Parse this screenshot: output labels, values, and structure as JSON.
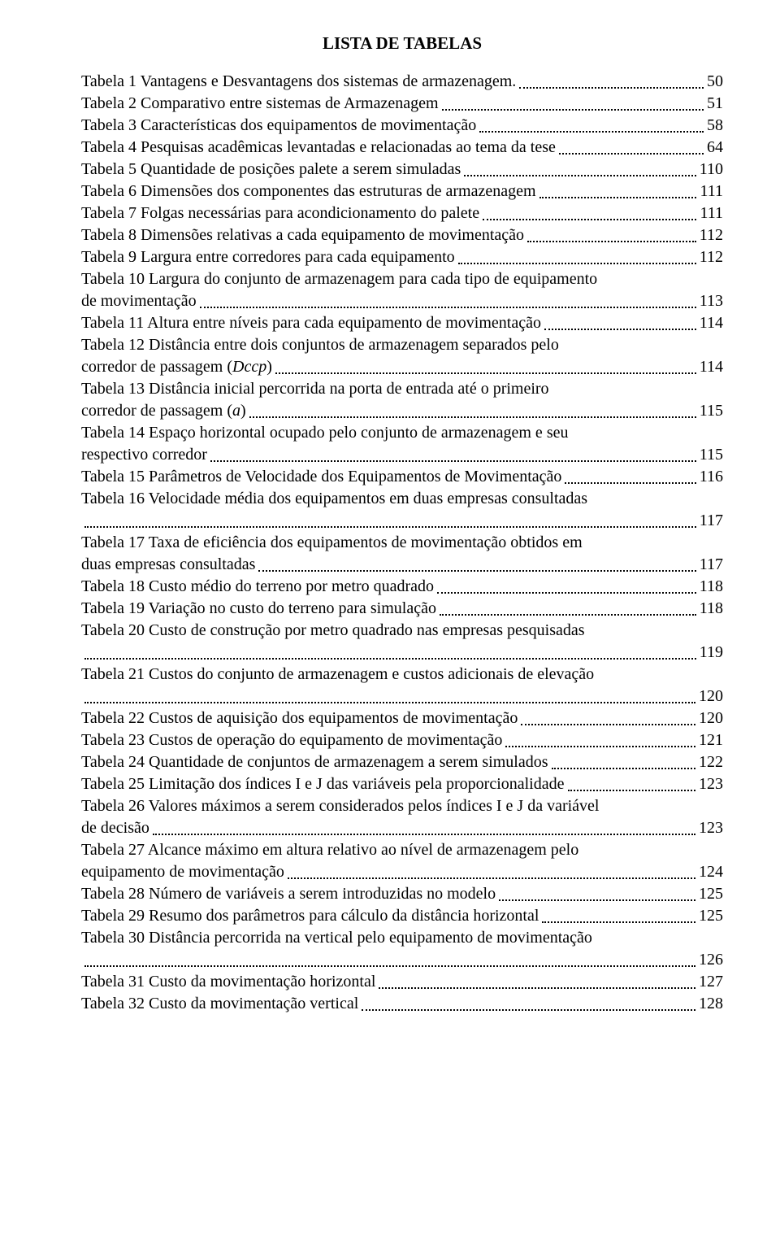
{
  "title": "LISTA DE TABELAS",
  "entries": [
    {
      "lines": [
        "Tabela 1 Vantagens e Desvantagens dos sistemas de armazenagem."
      ],
      "page": "50"
    },
    {
      "lines": [
        "Tabela 2 Comparativo entre sistemas de Armazenagem"
      ],
      "page": "51"
    },
    {
      "lines": [
        "Tabela 3 Características dos equipamentos de movimentação"
      ],
      "page": "58"
    },
    {
      "lines": [
        "Tabela 4 Pesquisas acadêmicas levantadas e relacionadas ao tema da tese"
      ],
      "page": "64"
    },
    {
      "lines": [
        "Tabela 5 Quantidade de posições palete a serem simuladas"
      ],
      "page": "110"
    },
    {
      "lines": [
        "Tabela 6 Dimensões dos componentes das estruturas de armazenagem"
      ],
      "page": "111"
    },
    {
      "lines": [
        "Tabela 7 Folgas necessárias para acondicionamento do palete"
      ],
      "page": "111"
    },
    {
      "lines": [
        "Tabela 8 Dimensões relativas a cada equipamento de movimentação"
      ],
      "page": "112"
    },
    {
      "lines": [
        "Tabela 9 Largura entre corredores para cada equipamento"
      ],
      "page": "112"
    },
    {
      "lines": [
        "Tabela 10 Largura do conjunto de armazenagem para cada tipo de equipamento",
        "de movimentação"
      ],
      "page": "113"
    },
    {
      "lines": [
        "Tabela 11 Altura entre níveis para cada equipamento de movimentação"
      ],
      "page": "114"
    },
    {
      "lines": [
        "Tabela 12 Distância entre dois conjuntos de armazenagem separados pelo",
        "corredor de passagem (<i>Dccp</i>)"
      ],
      "page": "114"
    },
    {
      "lines": [
        "Tabela 13 Distância inicial percorrida na porta de entrada até o primeiro",
        "corredor de passagem (<i>a</i>)"
      ],
      "page": "115"
    },
    {
      "lines": [
        "Tabela 14 Espaço horizontal ocupado pelo conjunto de armazenagem e seu",
        "respectivo corredor"
      ],
      "page": "115"
    },
    {
      "lines": [
        "Tabela 15 Parâmetros de Velocidade dos Equipamentos de Movimentação"
      ],
      "page": "116"
    },
    {
      "lines": [
        "Tabela 16 Velocidade média dos equipamentos em duas empresas consultadas",
        ""
      ],
      "page": "117"
    },
    {
      "lines": [
        "Tabela 17 Taxa de eficiência dos equipamentos de movimentação obtidos em",
        "duas empresas consultadas"
      ],
      "page": "117"
    },
    {
      "lines": [
        "Tabela 18 Custo médio do terreno por metro quadrado"
      ],
      "page": "118"
    },
    {
      "lines": [
        "Tabela 19 Variação no custo do terreno para simulação"
      ],
      "page": "118"
    },
    {
      "lines": [
        "Tabela 20 Custo de construção por metro quadrado nas empresas pesquisadas",
        ""
      ],
      "page": "119"
    },
    {
      "lines": [
        "Tabela 21 Custos do conjunto de armazenagem e custos adicionais de elevação",
        ""
      ],
      "page": "120"
    },
    {
      "lines": [
        "Tabela 22 Custos de aquisição dos equipamentos de movimentação"
      ],
      "page": "120"
    },
    {
      "lines": [
        "Tabela 23 Custos de operação do equipamento de movimentação"
      ],
      "page": "121"
    },
    {
      "lines": [
        "Tabela 24 Quantidade de conjuntos de armazenagem a serem simulados"
      ],
      "page": "122"
    },
    {
      "lines": [
        "Tabela 25 Limitação dos índices I e J das variáveis pela proporcionalidade"
      ],
      "page": "123"
    },
    {
      "lines": [
        "Tabela 26 Valores máximos a serem considerados pelos índices I e J da variável",
        "de decisão"
      ],
      "page": "123"
    },
    {
      "lines": [
        "Tabela 27 Alcance máximo em altura relativo ao nível de armazenagem pelo",
        "equipamento de movimentação"
      ],
      "page": "124"
    },
    {
      "lines": [
        "Tabela 28 Número de variáveis a serem introduzidas no modelo"
      ],
      "page": "125"
    },
    {
      "lines": [
        "Tabela 29 Resumo dos parâmetros para cálculo da distância horizontal"
      ],
      "page": "125"
    },
    {
      "lines": [
        "Tabela 30 Distância percorrida na vertical pelo equipamento de movimentação",
        ""
      ],
      "page": "126"
    },
    {
      "lines": [
        "Tabela 31 Custo da movimentação horizontal"
      ],
      "page": "127"
    },
    {
      "lines": [
        "Tabela 32 Custo da movimentação vertical"
      ],
      "page": "128"
    }
  ]
}
